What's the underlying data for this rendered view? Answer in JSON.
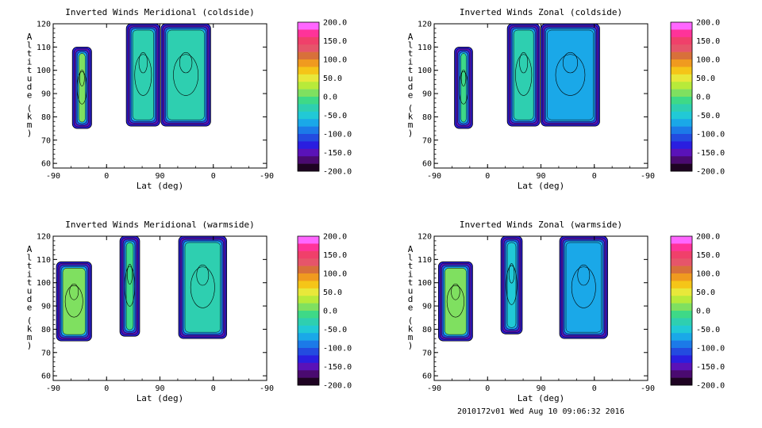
{
  "footer_text": "2010172v01 Wed Aug 10 09:06:32 2016",
  "colorbar": {
    "labels": [
      "200.0",
      "150.0",
      "100.0",
      "50.0",
      "0.0",
      "-50.0",
      "-100.0",
      "-150.0",
      "-200.0"
    ],
    "colors": [
      "#ff66ff",
      "#ff3399",
      "#f0406a",
      "#e6556a",
      "#d8703a",
      "#f09a1f",
      "#f5c518",
      "#e8e83a",
      "#b8ea3a",
      "#7fe060",
      "#3ed987",
      "#2ecfb0",
      "#21c9d6",
      "#1aa8e8",
      "#1c7ae8",
      "#234be0",
      "#2a1ee0",
      "#5a12b8",
      "#4a0a70",
      "#1e0322"
    ]
  },
  "chart_data": [
    {
      "type": "heatmap",
      "title": "Inverted Winds Meridional (coldside)",
      "xlabel": "Lat (deg)",
      "ylabel": "Altitude (km)",
      "xticks": [
        "-90",
        "0",
        "90",
        "0",
        "-90"
      ],
      "yticks": [
        "60",
        "70",
        "80",
        "90",
        "100",
        "110",
        "120"
      ],
      "xlim": [
        0,
        4
      ],
      "ylim": [
        58,
        120
      ],
      "clim": [
        -200,
        200
      ],
      "regions": [
        {
          "x0": 0.36,
          "x1": 0.72,
          "y0": 75,
          "y1": 110,
          "value": 20
        },
        {
          "x0": 1.37,
          "x1": 2.0,
          "y0": 76,
          "y1": 120,
          "value": -20
        },
        {
          "x0": 2.02,
          "x1": 2.95,
          "y0": 76,
          "y1": 120,
          "value": -30
        }
      ]
    },
    {
      "type": "heatmap",
      "title": "Inverted Winds Zonal (coldside)",
      "xlabel": "Lat (deg)",
      "ylabel": "Altitude (km)",
      "xticks": [
        "-90",
        "0",
        "90",
        "0",
        "-90"
      ],
      "yticks": [
        "60",
        "70",
        "80",
        "90",
        "100",
        "110",
        "120"
      ],
      "xlim": [
        0,
        4
      ],
      "ylim": [
        58,
        120
      ],
      "clim": [
        -200,
        200
      ],
      "regions": [
        {
          "x0": 0.38,
          "x1": 0.72,
          "y0": 75,
          "y1": 110,
          "value": -10
        },
        {
          "x0": 1.37,
          "x1": 1.98,
          "y0": 76,
          "y1": 120,
          "value": -20
        },
        {
          "x0": 2.0,
          "x1": 3.1,
          "y0": 76,
          "y1": 120,
          "value": -60
        }
      ]
    },
    {
      "type": "heatmap",
      "title": "Inverted Winds Meridional (warmside)",
      "xlabel": "Lat (deg)",
      "ylabel": "Altitude (km)",
      "xticks": [
        "-90",
        "0",
        "90",
        "0",
        "-90"
      ],
      "yticks": [
        "60",
        "70",
        "80",
        "90",
        "100",
        "110",
        "120"
      ],
      "xlim": [
        0,
        4
      ],
      "ylim": [
        58,
        120
      ],
      "clim": [
        -200,
        200
      ],
      "regions": [
        {
          "x0": 0.06,
          "x1": 0.72,
          "y0": 75,
          "y1": 109,
          "value": 20
        },
        {
          "x0": 1.25,
          "x1": 1.62,
          "y0": 77,
          "y1": 120,
          "value": -10
        },
        {
          "x0": 2.35,
          "x1": 3.25,
          "y0": 76,
          "y1": 120,
          "value": -20
        }
      ]
    },
    {
      "type": "heatmap",
      "title": "Inverted Winds Zonal (warmside)",
      "xlabel": "Lat (deg)",
      "ylabel": "Altitude (km)",
      "xticks": [
        "-90",
        "0",
        "90",
        "0",
        "-90"
      ],
      "yticks": [
        "60",
        "70",
        "80",
        "90",
        "100",
        "110",
        "120"
      ],
      "xlim": [
        0,
        4
      ],
      "ylim": [
        58,
        120
      ],
      "clim": [
        -200,
        200
      ],
      "regions": [
        {
          "x0": 0.08,
          "x1": 0.72,
          "y0": 75,
          "y1": 109,
          "value": 10
        },
        {
          "x0": 1.25,
          "x1": 1.65,
          "y0": 78,
          "y1": 120,
          "value": -40
        },
        {
          "x0": 2.35,
          "x1": 3.25,
          "y0": 76,
          "y1": 120,
          "value": -70
        }
      ]
    }
  ]
}
